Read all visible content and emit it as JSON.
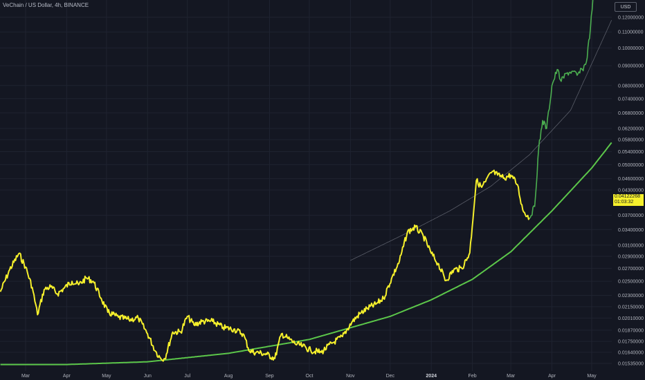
{
  "header": {
    "title": "VeChain / US Dollar, 4h, BINANCE",
    "currency": "USD"
  },
  "last_price": {
    "value": "0.04122268",
    "countdown": "01:03:32"
  },
  "colors": {
    "background": "#141722",
    "grid": "#1f2330",
    "price_line_yellow": "#f6f02c",
    "price_line_green": "#4caf50",
    "curve": "#5cc74a",
    "channel": "#6b6f7b",
    "axis_text": "#b2b5be"
  },
  "chart_data": {
    "type": "line",
    "title": "VeChain / US Dollar, 4h, BINANCE",
    "xlabel": "",
    "ylabel": "",
    "y_scale": "log",
    "ylim": [
      0.0152,
      0.133
    ],
    "x_tick_labels": [
      "Mar",
      "Apr",
      "May",
      "Jun",
      "Jul",
      "Aug",
      "Sep",
      "Oct",
      "Nov",
      "Dec",
      "2024",
      "Feb",
      "Mar",
      "Apr",
      "May"
    ],
    "x_tick_dates": [
      "2023-03-01",
      "2023-04-01",
      "2023-05-01",
      "2023-06-01",
      "2023-07-01",
      "2023-08-01",
      "2023-09-01",
      "2023-10-01",
      "2023-11-01",
      "2023-12-01",
      "2024-01-01",
      "2024-02-01",
      "2024-03-01",
      "2024-04-01",
      "2024-05-01"
    ],
    "y_tick_labels": [
      "0.12000000",
      "0.11000000",
      "0.10000000",
      "0.09000000",
      "0.08000000",
      "0.07400000",
      "0.06800000",
      "0.06200000",
      "0.05800000",
      "0.05400000",
      "0.05000000",
      "0.04600000",
      "0.04300000",
      "0.03700000",
      "0.03400000",
      "0.03100000",
      "0.02900000",
      "0.02700000",
      "0.02500000",
      "0.02300000",
      "0.02150000",
      "0.02010000",
      "0.01870000",
      "0.01750000",
      "0.01640000",
      "0.01535000"
    ],
    "y_tick_values": [
      0.12,
      0.11,
      0.1,
      0.09,
      0.08,
      0.074,
      0.068,
      0.062,
      0.058,
      0.054,
      0.05,
      0.046,
      0.043,
      0.037,
      0.034,
      0.031,
      0.029,
      0.027,
      0.025,
      0.023,
      0.0215,
      0.0201,
      0.0187,
      0.0175,
      0.0164,
      0.01535
    ],
    "grid": true,
    "series": [
      {
        "color": "#f6f02c",
        "x": [
          "2023-02-10",
          "2023-02-17",
          "2023-02-24",
          "2023-03-01",
          "2023-03-06",
          "2023-03-10",
          "2023-03-15",
          "2023-03-20",
          "2023-03-25",
          "2023-03-30",
          "2023-04-05",
          "2023-04-10",
          "2023-04-16",
          "2023-04-21",
          "2023-04-27",
          "2023-05-02",
          "2023-05-10",
          "2023-05-18",
          "2023-05-25",
          "2023-06-01",
          "2023-06-07",
          "2023-06-11",
          "2023-06-14",
          "2023-06-20",
          "2023-06-26",
          "2023-07-01",
          "2023-07-06",
          "2023-07-12",
          "2023-07-20",
          "2023-07-28",
          "2023-08-05",
          "2023-08-12",
          "2023-08-17",
          "2023-08-22",
          "2023-08-30",
          "2023-09-05",
          "2023-09-10",
          "2023-09-15",
          "2023-09-20",
          "2023-09-26",
          "2023-10-02",
          "2023-10-10",
          "2023-10-18",
          "2023-10-26",
          "2023-11-02",
          "2023-11-08",
          "2023-11-14",
          "2023-11-20",
          "2023-11-26",
          "2023-12-02",
          "2023-12-08",
          "2023-12-14",
          "2023-12-20",
          "2023-12-26",
          "2024-01-01",
          "2024-01-06",
          "2024-01-12",
          "2024-01-18",
          "2024-01-24",
          "2024-01-30",
          "2024-02-04",
          "2024-02-08",
          "2024-02-11",
          "2024-02-16",
          "2024-02-20",
          "2024-02-25",
          "2024-03-01",
          "2024-03-06",
          "2024-03-10",
          "2024-03-15"
        ],
        "y": [
          0.0235,
          0.0268,
          0.0295,
          0.0272,
          0.0241,
          0.0205,
          0.0238,
          0.0242,
          0.0232,
          0.024,
          0.025,
          0.0245,
          0.0255,
          0.025,
          0.0226,
          0.0208,
          0.0202,
          0.0199,
          0.0201,
          0.0183,
          0.0165,
          0.0158,
          0.0158,
          0.0185,
          0.0185,
          0.0203,
          0.0193,
          0.0197,
          0.0197,
          0.019,
          0.0188,
          0.0183,
          0.0165,
          0.0164,
          0.0162,
          0.0158,
          0.0183,
          0.0178,
          0.0173,
          0.017,
          0.0166,
          0.0164,
          0.0173,
          0.018,
          0.0196,
          0.0206,
          0.0213,
          0.0218,
          0.0226,
          0.0254,
          0.0282,
          0.0335,
          0.0345,
          0.0327,
          0.0295,
          0.0278,
          0.0251,
          0.0268,
          0.027,
          0.0296,
          0.0455,
          0.0437,
          0.0452,
          0.048,
          0.047,
          0.0462,
          0.047,
          0.0444,
          0.0382,
          0.0364
        ]
      },
      {
        "color": "#4caf50",
        "x": [
          "2024-03-15",
          "2024-03-19",
          "2024-03-22",
          "2024-03-25",
          "2024-03-28",
          "2024-04-01",
          "2024-04-05",
          "2024-04-08",
          "2024-04-12",
          "2024-04-16",
          "2024-04-20",
          "2024-04-24",
          "2024-04-27",
          "2024-04-30",
          "2024-05-02"
        ],
        "y": [
          0.0364,
          0.039,
          0.055,
          0.065,
          0.062,
          0.08,
          0.088,
          0.082,
          0.086,
          0.087,
          0.085,
          0.088,
          0.092,
          0.112,
          0.135
        ]
      }
    ],
    "support_curve": {
      "color": "#5cc74a",
      "x": [
        "2023-02-10",
        "2023-04-01",
        "2023-06-01",
        "2023-08-01",
        "2023-10-01",
        "2023-12-01",
        "2024-01-01",
        "2024-02-01",
        "2024-03-01",
        "2024-04-01",
        "2024-05-01",
        "2024-05-16"
      ],
      "y": [
        0.01525,
        0.01525,
        0.0155,
        0.0163,
        0.0177,
        0.0203,
        0.0224,
        0.0253,
        0.0298,
        0.038,
        0.049,
        0.057
      ]
    },
    "channel_line": {
      "color": "#6b6f7b",
      "x": [
        "2023-11-01",
        "2023-12-15",
        "2024-01-15",
        "2024-02-15",
        "2024-03-15",
        "2024-04-15",
        "2024-05-16"
      ],
      "y": [
        0.0283,
        0.0335,
        0.038,
        0.044,
        0.053,
        0.069,
        0.118
      ]
    }
  }
}
